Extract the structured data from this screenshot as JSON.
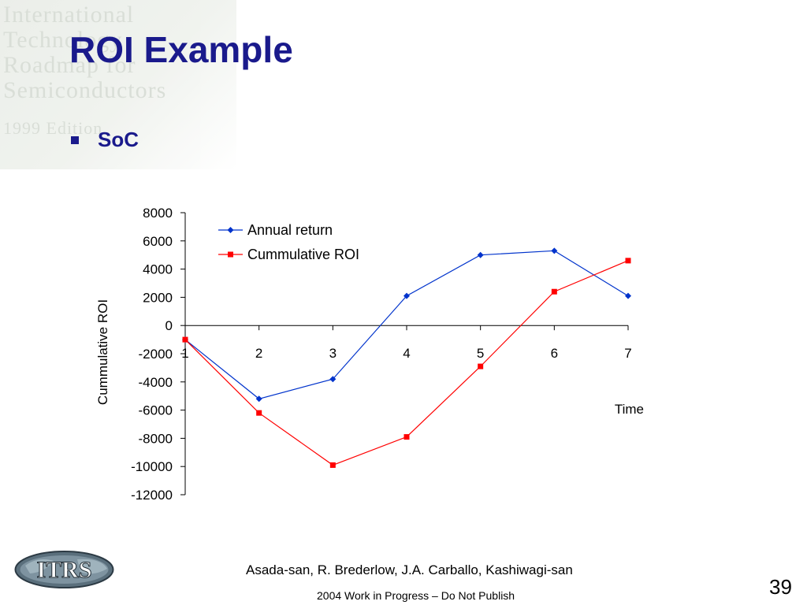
{
  "slide": {
    "title": "ROI Example",
    "bullet": "SoC",
    "footer_authors": "Asada-san, R. Brederlow, J.A. Carballo, Kashiwagi-san",
    "footer_note": "2004 Work in Progress – Do Not Publish",
    "page_number": "39",
    "logo_text": "ITRS",
    "watermark_lines": [
      "International",
      "Technology",
      "Roadmap for",
      "Semiconductors",
      "1999 Edition"
    ]
  },
  "chart_data": {
    "type": "line",
    "title": "",
    "xlabel": "Time",
    "ylabel": "Cummulative ROI",
    "x": [
      1,
      2,
      3,
      4,
      5,
      6,
      7
    ],
    "ylim": [
      -12000,
      8000
    ],
    "yticks": [
      8000,
      6000,
      4000,
      2000,
      0,
      -2000,
      -4000,
      -6000,
      -8000,
      -10000,
      -12000
    ],
    "legend_position": "top-left",
    "grid": false,
    "series": [
      {
        "name": "Annual return",
        "color": "#0033cc",
        "marker": "diamond",
        "values": [
          -1000,
          -5200,
          -3800,
          2100,
          5000,
          5300,
          2100
        ]
      },
      {
        "name": "Cummulative ROI",
        "color": "#ff0000",
        "marker": "square",
        "values": [
          -1000,
          -6200,
          -9900,
          -7900,
          -2900,
          2400,
          4600
        ]
      }
    ]
  }
}
